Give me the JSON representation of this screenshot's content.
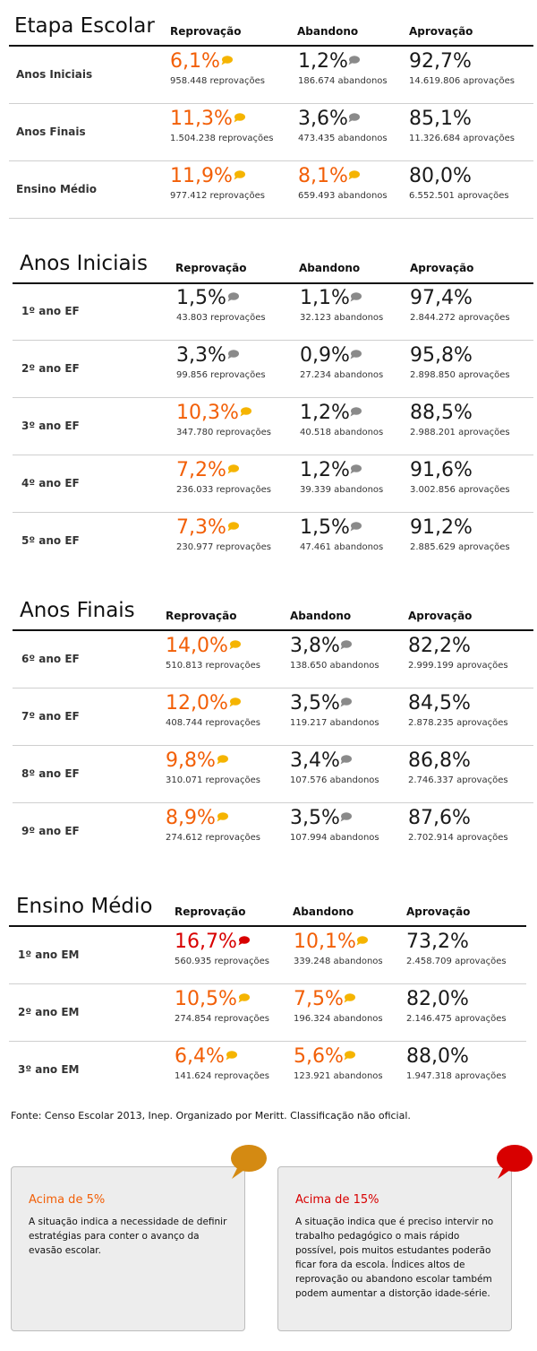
{
  "colors": {
    "orange": "#f25f07",
    "red": "#d80000",
    "dark": "#1a1a1a",
    "bubble_gray": "#8a8a8a",
    "bubble_yellow": "#f5b400",
    "bubble_red": "#d80000"
  },
  "sections": [
    {
      "title": "Etapa Escolar",
      "headers": {
        "rep": "Reprovação",
        "aba": "Abandono",
        "apr": "Aprovação"
      },
      "rows": [
        {
          "label": "Anos Iniciais",
          "rep": "6,1%",
          "rep_sub": "958.448 reprovações",
          "aba": "1,2%",
          "aba_sub": "186.674 abandonos",
          "apr": "92,7%",
          "apr_sub": "14.619.806 aprovações"
        },
        {
          "label": "Anos Finais",
          "rep": "11,3%",
          "rep_sub": "1.504.238 reprovações",
          "aba": "3,6%",
          "aba_sub": "473.435 abandonos",
          "apr": "85,1%",
          "apr_sub": "11.326.684 aprovações"
        },
        {
          "label": "Ensino Médio",
          "rep": "11,9%",
          "rep_sub": "977.412 reprovações",
          "aba": "8,1%",
          "aba_sub": "659.493 abandonos",
          "apr": "80,0%",
          "apr_sub": "6.552.501 aprovações"
        }
      ]
    },
    {
      "title": "Anos Iniciais",
      "headers": {
        "rep": "Reprovação",
        "aba": "Abandono",
        "apr": "Aprovação"
      },
      "rows": [
        {
          "label": "1º ano EF",
          "rep": "1,5%",
          "rep_sub": "43.803 reprovações",
          "aba": "1,1%",
          "aba_sub": "32.123 abandonos",
          "apr": "97,4%",
          "apr_sub": "2.844.272 aprovações"
        },
        {
          "label": "2º ano EF",
          "rep": "3,3%",
          "rep_sub": "99.856 reprovações",
          "aba": "0,9%",
          "aba_sub": "27.234 abandonos",
          "apr": "95,8%",
          "apr_sub": "2.898.850 aprovações"
        },
        {
          "label": "3º ano EF",
          "rep": "10,3%",
          "rep_sub": "347.780 reprovações",
          "aba": "1,2%",
          "aba_sub": "40.518 abandonos",
          "apr": "88,5%",
          "apr_sub": "2.988.201 aprovações"
        },
        {
          "label": "4º ano EF",
          "rep": "7,2%",
          "rep_sub": "236.033 reprovações",
          "aba": "1,2%",
          "aba_sub": "39.339 abandonos",
          "apr": "91,6%",
          "apr_sub": "3.002.856 aprovações"
        },
        {
          "label": "5º ano EF",
          "rep": "7,3%",
          "rep_sub": "230.977 reprovações",
          "aba": "1,5%",
          "aba_sub": "47.461 abandonos",
          "apr": "91,2%",
          "apr_sub": "2.885.629 aprovações"
        }
      ]
    },
    {
      "title": "Anos Finais",
      "headers": {
        "rep": "Reprovação",
        "aba": "Abandono",
        "apr": "Aprovação"
      },
      "rows": [
        {
          "label": "6º ano EF",
          "rep": "14,0%",
          "rep_sub": "510.813 reprovações",
          "aba": "3,8%",
          "aba_sub": "138.650 abandonos",
          "apr": "82,2%",
          "apr_sub": "2.999.199 aprovações"
        },
        {
          "label": "7º ano EF",
          "rep": "12,0%",
          "rep_sub": "408.744 reprovações",
          "aba": "3,5%",
          "aba_sub": "119.217 abandonos",
          "apr": "84,5%",
          "apr_sub": "2.878.235 aprovações"
        },
        {
          "label": "8º ano EF",
          "rep": "9,8%",
          "rep_sub": "310.071 reprovações",
          "aba": "3,4%",
          "aba_sub": "107.576 abandonos",
          "apr": "86,8%",
          "apr_sub": "2.746.337 aprovações"
        },
        {
          "label": "9º ano EF",
          "rep": "8,9%",
          "rep_sub": "274.612 reprovações",
          "aba": "3,5%",
          "aba_sub": "107.994 abandonos",
          "apr": "87,6%",
          "apr_sub": "2.702.914 aprovações"
        }
      ]
    },
    {
      "title": "Ensino Médio",
      "headers": {
        "rep": "Reprovação",
        "aba": "Abandono",
        "apr": "Aprovação"
      },
      "rows": [
        {
          "label": "1º ano EM",
          "rep": "16,7%",
          "rep_sub": "560.935 reprovações",
          "aba": "10,1%",
          "aba_sub": "339.248 abandonos",
          "apr": "73,2%",
          "apr_sub": "2.458.709 aprovações"
        },
        {
          "label": "2º ano EM",
          "rep": "10,5%",
          "rep_sub": "274.854 reprovações",
          "aba": "7,5%",
          "aba_sub": "196.324 abandonos",
          "apr": "82,0%",
          "apr_sub": "2.146.475 aprovações"
        },
        {
          "label": "3º ano EM",
          "rep": "6,4%",
          "rep_sub": "141.624 reprovações",
          "aba": "5,6%",
          "aba_sub": "123.921 abandonos",
          "apr": "88,0%",
          "apr_sub": "1.947.318 aprovações"
        }
      ]
    }
  ],
  "source": "Fonte: Censo Escolar 2013, Inep. Organizado por Meritt. Classificação não oficial.",
  "notes": [
    {
      "title": "Acima de 5%",
      "text": "A situação indica a necessidade de definir estratégias para conter o avanço da evasão escolar.",
      "icon": "chat-bubble-yellow-icon"
    },
    {
      "title": "Acima de 15%",
      "text": "A situação indica que é preciso intervir no trabalho pedagógico o mais rápido possível, pois muitos estudantes poderão ficar fora da escola. Índices altos de reprovação ou abandono escolar também podem aumentar a distorção idade-série.",
      "icon": "chat-bubble-red-icon"
    }
  ]
}
